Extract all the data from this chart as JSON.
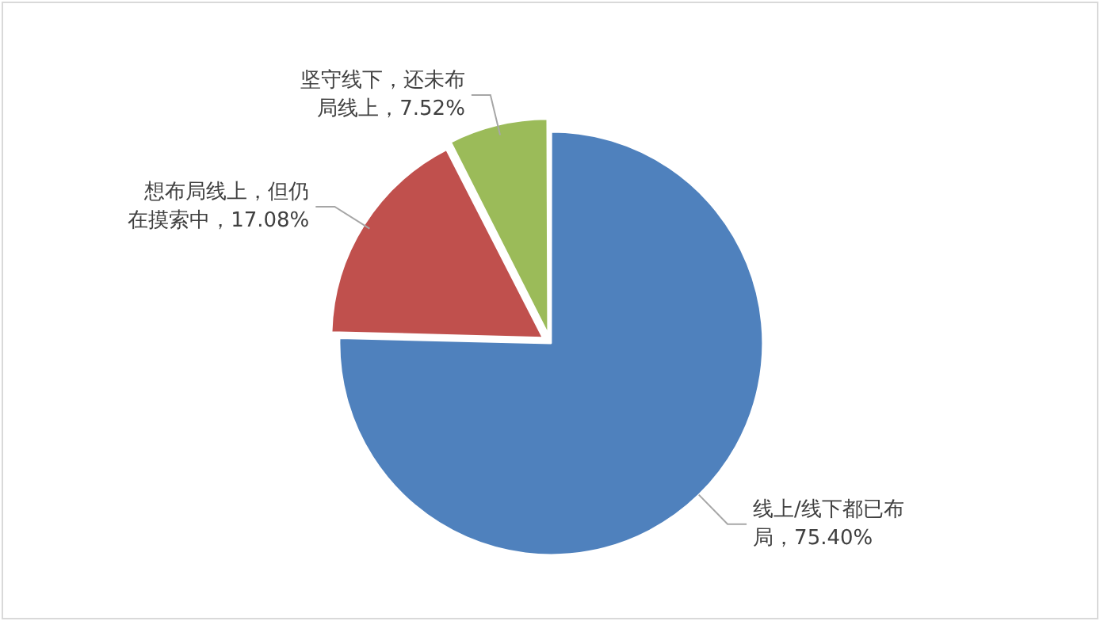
{
  "chart_data": {
    "type": "pie",
    "categories": [
      "线上/线下都已布局",
      "想布局线上，但仍在摸索中",
      "坚守线下，还未布局线上"
    ],
    "values": [
      75.4,
      17.08,
      7.52
    ],
    "value_labels": [
      "75.40%",
      "17.08%",
      "7.52%"
    ],
    "colors": [
      "#4f81bd",
      "#c0504d",
      "#9bbb59"
    ],
    "legend": false
  }
}
